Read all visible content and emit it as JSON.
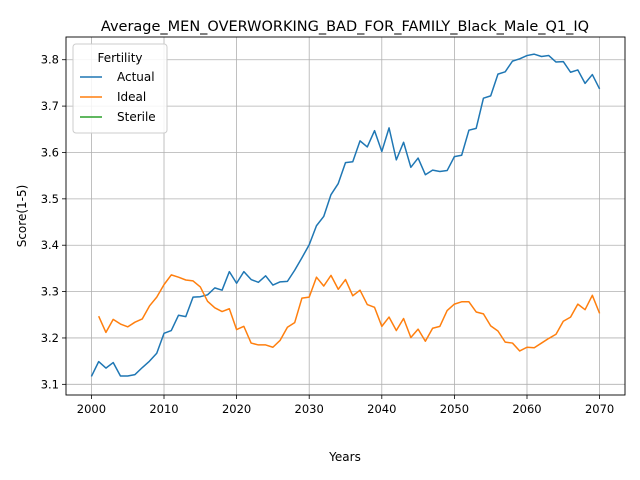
{
  "chart_data": {
    "type": "line",
    "title": "Average_MEN_OVERWORKING_BAD_FOR_FAMILY_Black_Male_Q1_IQ",
    "xlabel": "Years",
    "ylabel": "Score(1-5)",
    "xlim": [
      1996.5,
      2073.5
    ],
    "ylim": [
      3.077,
      3.849
    ],
    "xticks": [
      2000,
      2010,
      2020,
      2030,
      2040,
      2050,
      2060,
      2070
    ],
    "yticks": [
      3.1,
      3.2,
      3.3,
      3.4,
      3.5,
      3.6,
      3.7,
      3.8
    ],
    "grid": true,
    "legend": {
      "title": "Fertility",
      "location": "upper-left"
    },
    "series": [
      {
        "name": "Actual",
        "color": "#1f77b4",
        "x": [
          2000,
          2001,
          2002,
          2003,
          2004,
          2005,
          2006,
          2007,
          2008,
          2009,
          2010,
          2011,
          2012,
          2013,
          2014,
          2015,
          2016,
          2017,
          2018,
          2019,
          2020,
          2021,
          2022,
          2023,
          2024,
          2025,
          2026,
          2027,
          2028,
          2029,
          2030,
          2031,
          2032,
          2033,
          2034,
          2035,
          2036,
          2037,
          2038,
          2039,
          2040,
          2041,
          2042,
          2043,
          2044,
          2045,
          2046,
          2047,
          2048,
          2049,
          2050,
          2051,
          2052,
          2053,
          2054,
          2055,
          2056,
          2057,
          2058,
          2059,
          2060,
          2061,
          2062,
          2063,
          2064,
          2065,
          2066,
          2067,
          2068,
          2069,
          2070
        ],
        "values": [
          3.117,
          3.149,
          3.135,
          3.147,
          3.118,
          3.118,
          3.121,
          3.136,
          3.15,
          3.167,
          3.21,
          3.216,
          3.249,
          3.246,
          3.288,
          3.289,
          3.293,
          3.308,
          3.303,
          3.343,
          3.318,
          3.343,
          3.326,
          3.32,
          3.334,
          3.314,
          3.321,
          3.322,
          3.346,
          3.373,
          3.401,
          3.442,
          3.462,
          3.509,
          3.533,
          3.578,
          3.58,
          3.625,
          3.612,
          3.647,
          3.602,
          3.653,
          3.584,
          3.622,
          3.568,
          3.588,
          3.552,
          3.562,
          3.559,
          3.561,
          3.591,
          3.594,
          3.648,
          3.652,
          3.717,
          3.722,
          3.769,
          3.774,
          3.797,
          3.802,
          3.809,
          3.812,
          3.807,
          3.809,
          3.795,
          3.796,
          3.773,
          3.778,
          3.749,
          3.768,
          3.737
        ]
      },
      {
        "name": "Ideal",
        "color": "#ff7f0e",
        "x": [
          2001,
          2002,
          2003,
          2004,
          2005,
          2006,
          2007,
          2008,
          2009,
          2010,
          2011,
          2012,
          2013,
          2014,
          2015,
          2016,
          2017,
          2018,
          2019,
          2020,
          2021,
          2022,
          2023,
          2024,
          2025,
          2026,
          2027,
          2028,
          2029,
          2030,
          2031,
          2032,
          2033,
          2034,
          2035,
          2036,
          2037,
          2038,
          2039,
          2040,
          2041,
          2042,
          2043,
          2044,
          2045,
          2046,
          2047,
          2048,
          2049,
          2050,
          2051,
          2052,
          2053,
          2054,
          2055,
          2056,
          2057,
          2058,
          2059,
          2060,
          2061,
          2062,
          2063,
          2064,
          2065,
          2066,
          2067,
          2068,
          2069,
          2070
        ],
        "values": [
          3.247,
          3.212,
          3.24,
          3.23,
          3.224,
          3.234,
          3.241,
          3.269,
          3.288,
          3.315,
          3.336,
          3.331,
          3.325,
          3.323,
          3.31,
          3.279,
          3.265,
          3.257,
          3.263,
          3.218,
          3.225,
          3.189,
          3.185,
          3.185,
          3.18,
          3.195,
          3.223,
          3.233,
          3.286,
          3.288,
          3.331,
          3.312,
          3.335,
          3.305,
          3.326,
          3.291,
          3.303,
          3.272,
          3.266,
          3.225,
          3.245,
          3.216,
          3.242,
          3.201,
          3.219,
          3.193,
          3.221,
          3.225,
          3.259,
          3.273,
          3.278,
          3.278,
          3.256,
          3.252,
          3.226,
          3.215,
          3.191,
          3.189,
          3.172,
          3.18,
          3.179,
          3.189,
          3.199,
          3.208,
          3.236,
          3.245,
          3.273,
          3.261,
          3.292,
          3.253
        ]
      },
      {
        "name": "Sterile",
        "color": "#2ca02c",
        "x": [],
        "values": []
      }
    ]
  }
}
